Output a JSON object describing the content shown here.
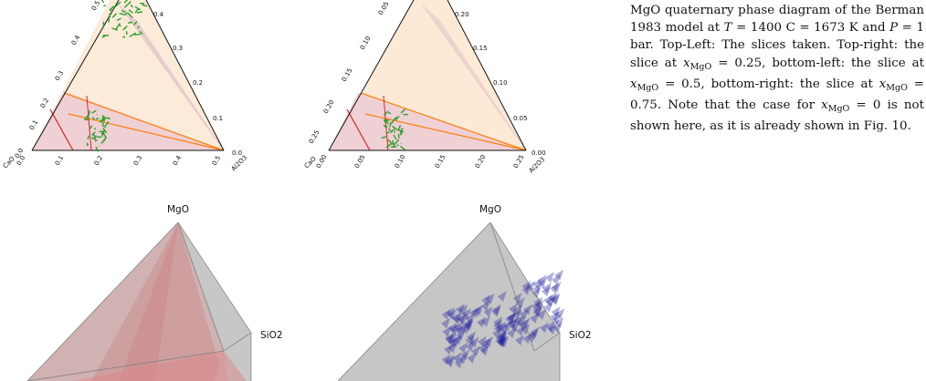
{
  "top_left": {
    "vertex_labels": {
      "left": "CaO",
      "right": "Al2O3"
    },
    "left_ticks": [
      "0.0",
      "0.1",
      "0.2",
      "0.3",
      "0.4",
      "0.5"
    ],
    "bottom_ticks": [
      "0.0",
      "0.1",
      "0.2",
      "0.3",
      "0.4",
      "0.5"
    ],
    "right_ticks": [
      "0.0",
      "0.1",
      "0.2",
      "0.3",
      "0.4"
    ]
  },
  "top_right": {
    "vertex_labels": {
      "left": "CaO",
      "right": "Al2O3"
    },
    "left_ticks": [
      "0.25",
      "0.20",
      "0.15",
      "0.10",
      "0.05"
    ],
    "bottom_ticks": [
      "0.00",
      "0.05",
      "0.10",
      "0.15",
      "0.20",
      "0.25"
    ],
    "right_ticks": [
      "0.00",
      "0.05",
      "0.10",
      "0.15",
      "0.20"
    ]
  },
  "bottom_left": {
    "labels": {
      "top": "MgO",
      "side": "SiO2"
    }
  },
  "bottom_right": {
    "labels": {
      "top": "MgO",
      "side": "SiO2"
    }
  },
  "caption": {
    "line1": "MgO quaternary phase diagram of the",
    "line2": "Berman 1983 model at",
    "T": "T",
    "eq1": "= 1400 C",
    "line3": "= 1673 K and",
    "P": "P",
    "eq2": "= 1 bar. Top-Left:",
    "line4": "The slices taken. Top-right: the slice at",
    "x": "x",
    "sub": "MgO",
    "eq025": "= 0.25, bottom-left: the slice at",
    "eq05": "= 0.5, bottom-right: the slice at",
    "eq075": "= 0.75. Note that the case for",
    "eq0": "= 0 is not shown here, as it is",
    "line_last": "already shown in Fig. 10."
  },
  "colors": {
    "fill_light": "#fbe6d0",
    "fill_pink": "#efd0d4",
    "purple": "#9467bd",
    "orange": "#ff7f0e",
    "red": "#d62728",
    "green": "#2ca02c",
    "gray_tetra": "#bdbdbd",
    "red_tetra": "#d9a0a0",
    "blue_cloud": "#1f1fa0"
  }
}
